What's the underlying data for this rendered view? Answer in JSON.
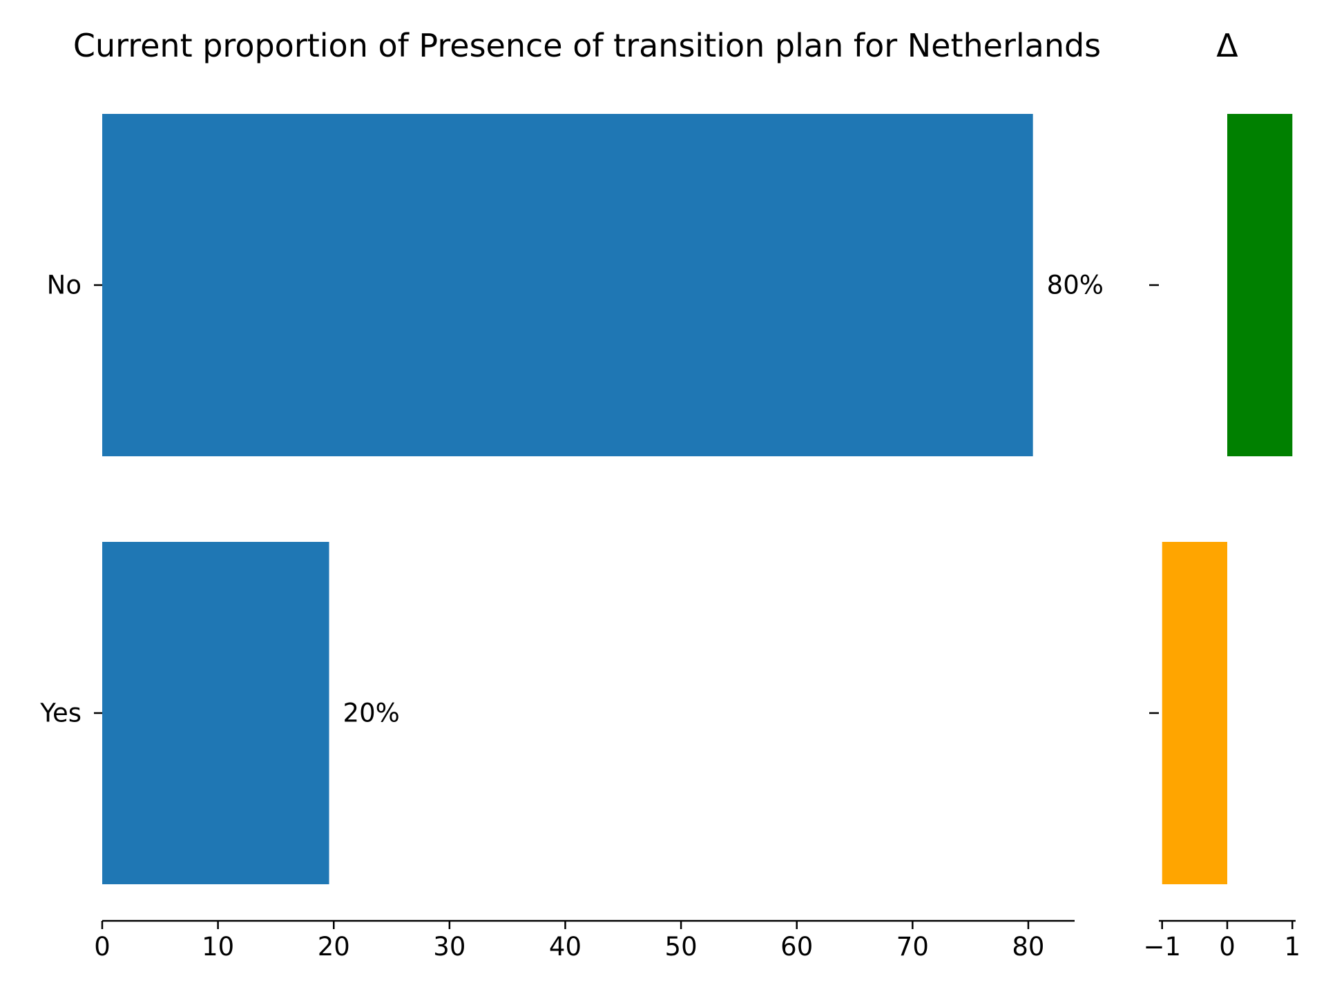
{
  "chart_data": [
    {
      "type": "bar",
      "orientation": "horizontal",
      "title": "Current proportion of Presence of transition plan for Netherlands",
      "categories": [
        "No",
        "Yes"
      ],
      "values": [
        80.4,
        19.6
      ],
      "data_labels": [
        "80%",
        "20%"
      ],
      "xlim": [
        0,
        84
      ],
      "xticks": [
        0,
        10,
        20,
        30,
        40,
        50,
        60,
        70,
        80
      ],
      "xtick_labels": [
        "0",
        "10",
        "20",
        "30",
        "40",
        "50",
        "60",
        "70",
        "80"
      ],
      "bar_color": "#1f77b4",
      "grid": false
    },
    {
      "type": "bar",
      "orientation": "horizontal",
      "title": "Δ",
      "categories": [
        "No",
        "Yes"
      ],
      "values": [
        1,
        -1
      ],
      "xlim": [
        -1.05,
        1.05
      ],
      "xticks": [
        -1,
        0,
        1
      ],
      "xtick_labels": [
        "−1",
        "0",
        "1"
      ],
      "colors": [
        "#008000",
        "#ffa500"
      ],
      "grid": false
    }
  ]
}
